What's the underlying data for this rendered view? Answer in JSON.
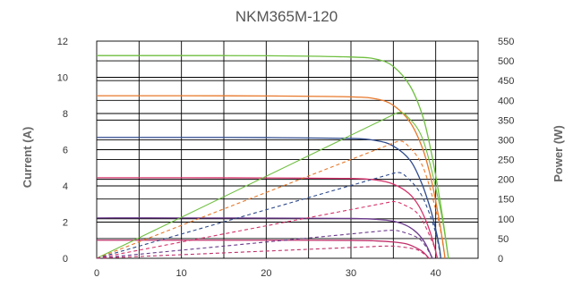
{
  "chart_data": {
    "type": "line",
    "title": "NKM365M-120",
    "xlabel": "",
    "ylabel": "Current (A)",
    "y2label": "Power (W)",
    "xlim": [
      0,
      45
    ],
    "ylim": [
      0,
      12
    ],
    "y2lim": [
      0,
      550
    ],
    "xticks": [
      0,
      10,
      20,
      30,
      40
    ],
    "yticks": [
      0,
      2,
      4,
      6,
      8,
      10,
      12
    ],
    "y2ticks": [
      0,
      50,
      100,
      150,
      200,
      250,
      300,
      350,
      400,
      450,
      500,
      550
    ],
    "grid": true,
    "series": [
      {
        "kind": "iv",
        "color": "#6fbf3f",
        "isc": 11.2,
        "voc": 41.5,
        "points": [
          [
            0,
            11.2
          ],
          [
            10,
            11.2
          ],
          [
            20,
            11.19
          ],
          [
            30,
            11.12
          ],
          [
            33,
            11.0
          ],
          [
            35,
            10.6
          ],
          [
            37,
            9.5
          ],
          [
            38.5,
            7.8
          ],
          [
            39.5,
            5.8
          ],
          [
            40.5,
            3.2
          ],
          [
            41.2,
            1.0
          ],
          [
            41.5,
            0
          ]
        ]
      },
      {
        "kind": "iv",
        "color": "#e8782a",
        "isc": 8.98,
        "voc": 41.1,
        "points": [
          [
            0,
            8.98
          ],
          [
            10,
            8.98
          ],
          [
            20,
            8.97
          ],
          [
            30,
            8.92
          ],
          [
            33,
            8.8
          ],
          [
            35,
            8.45
          ],
          [
            37,
            7.5
          ],
          [
            38.5,
            6.0
          ],
          [
            39.5,
            4.3
          ],
          [
            40.3,
            2.4
          ],
          [
            40.8,
            1.0
          ],
          [
            41.1,
            0
          ]
        ]
      },
      {
        "kind": "iv",
        "color": "#2e4a8c",
        "isc": 6.68,
        "voc": 40.6,
        "points": [
          [
            0,
            6.68
          ],
          [
            10,
            6.68
          ],
          [
            20,
            6.67
          ],
          [
            30,
            6.62
          ],
          [
            33,
            6.5
          ],
          [
            35,
            6.2
          ],
          [
            37,
            5.4
          ],
          [
            38.3,
            4.2
          ],
          [
            39.2,
            3.0
          ],
          [
            39.9,
            1.8
          ],
          [
            40.4,
            0.7
          ],
          [
            40.6,
            0
          ]
        ]
      },
      {
        "kind": "iv",
        "color": "#d6336c",
        "isc": 4.45,
        "voc": 40.2,
        "points": [
          [
            0,
            4.45
          ],
          [
            10,
            4.45
          ],
          [
            20,
            4.44
          ],
          [
            30,
            4.41
          ],
          [
            33,
            4.32
          ],
          [
            35,
            4.1
          ],
          [
            36.8,
            3.6
          ],
          [
            38,
            2.9
          ],
          [
            39,
            1.9
          ],
          [
            39.7,
            0.9
          ],
          [
            40.2,
            0
          ]
        ]
      },
      {
        "kind": "iv",
        "color": "#6b3a8c",
        "isc": 2.23,
        "voc": 39.6,
        "points": [
          [
            0,
            2.23
          ],
          [
            10,
            2.23
          ],
          [
            20,
            2.22
          ],
          [
            30,
            2.2
          ],
          [
            33,
            2.15
          ],
          [
            35,
            2.05
          ],
          [
            36.6,
            1.8
          ],
          [
            37.8,
            1.4
          ],
          [
            38.8,
            0.8
          ],
          [
            39.6,
            0
          ]
        ]
      },
      {
        "kind": "iv",
        "color": "#c0306a",
        "isc": 1.0,
        "voc": 39.2,
        "points": [
          [
            0,
            1.0
          ],
          [
            10,
            1.0
          ],
          [
            20,
            1.0
          ],
          [
            30,
            0.99
          ],
          [
            33,
            0.96
          ],
          [
            35,
            0.9
          ],
          [
            36.5,
            0.8
          ],
          [
            37.6,
            0.6
          ],
          [
            38.5,
            0.35
          ],
          [
            39.2,
            0
          ]
        ]
      },
      {
        "kind": "power",
        "color": "#6fbf3f",
        "points": [
          [
            0,
            0
          ],
          [
            35.5,
            369
          ],
          [
            36.5,
            362
          ],
          [
            38.5,
            300
          ],
          [
            40.5,
            130
          ],
          [
            41.5,
            0
          ]
        ]
      },
      {
        "kind": "power",
        "color": "#e8782a",
        "points": [
          [
            0,
            0
          ],
          [
            35.5,
            296
          ],
          [
            36.5,
            290
          ],
          [
            38.5,
            231
          ],
          [
            40.3,
            97
          ],
          [
            41.1,
            0
          ]
        ]
      },
      {
        "kind": "power",
        "color": "#2e4a8c",
        "points": [
          [
            0,
            0
          ],
          [
            35.3,
            217
          ],
          [
            36.3,
            211
          ],
          [
            38.3,
            161
          ],
          [
            39.9,
            72
          ],
          [
            40.6,
            0
          ]
        ]
      },
      {
        "kind": "power",
        "color": "#d6336c",
        "points": [
          [
            0,
            0
          ],
          [
            35.0,
            144
          ],
          [
            36.0,
            138
          ],
          [
            38.0,
            110
          ],
          [
            39.7,
            36
          ],
          [
            40.2,
            0
          ]
        ]
      },
      {
        "kind": "power",
        "color": "#6b3a8c",
        "points": [
          [
            0,
            0
          ],
          [
            34.5,
            71
          ],
          [
            35.7,
            69
          ],
          [
            37.8,
            53
          ],
          [
            38.8,
            31
          ],
          [
            39.6,
            0
          ]
        ]
      },
      {
        "kind": "power",
        "color": "#c0306a",
        "points": [
          [
            0,
            0
          ],
          [
            34.0,
            31
          ],
          [
            35.5,
            30
          ],
          [
            37.6,
            23
          ],
          [
            38.5,
            13
          ],
          [
            39.2,
            0
          ]
        ]
      }
    ]
  }
}
